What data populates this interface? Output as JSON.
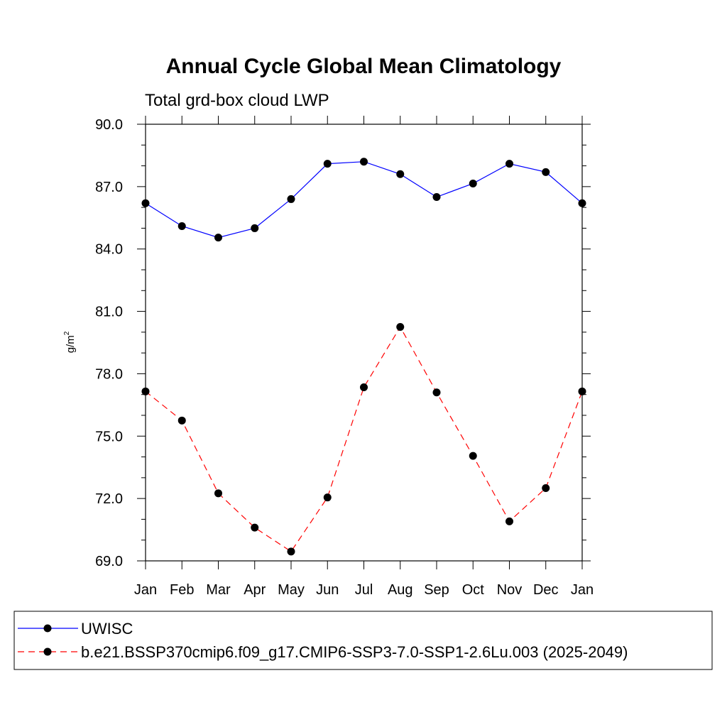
{
  "chart_data": {
    "type": "line",
    "title": "Annual Cycle Global Mean Climatology",
    "subtitle": "Total grd-box cloud LWP",
    "xlabel": "",
    "ylabel": "g/m",
    "ylabel_sup": "2",
    "categories": [
      "Jan",
      "Feb",
      "Mar",
      "Apr",
      "May",
      "Jun",
      "Jul",
      "Aug",
      "Sep",
      "Oct",
      "Nov",
      "Dec",
      "Jan"
    ],
    "ylim": [
      69.0,
      90.0
    ],
    "yticks": [
      "69.0",
      "72.0",
      "75.0",
      "78.0",
      "81.0",
      "84.0",
      "87.0",
      "90.0"
    ],
    "ytick_values": [
      69,
      72,
      75,
      78,
      81,
      84,
      87,
      90
    ],
    "grid": false,
    "legend_position": "bottom",
    "series": [
      {
        "name": "UWISC",
        "color": "#0000ff",
        "dash": "solid",
        "values": [
          86.2,
          85.1,
          84.55,
          85.0,
          86.4,
          88.1,
          88.2,
          87.6,
          86.5,
          87.15,
          88.1,
          87.7,
          86.2
        ]
      },
      {
        "name": "b.e21.BSSP370cmip6.f09_g17.CMIP6-SSP3-7.0-SSP1-2.6Lu.003 (2025-2049)",
        "color": "#ff0000",
        "dash": "dashed",
        "values": [
          77.15,
          75.75,
          72.25,
          70.6,
          69.45,
          72.05,
          77.35,
          80.25,
          77.1,
          74.05,
          70.9,
          72.5,
          77.15
        ]
      }
    ]
  }
}
